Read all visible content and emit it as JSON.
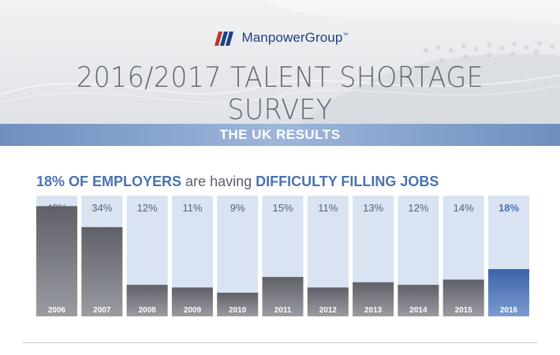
{
  "header": {
    "brand_name": "ManpowerGroup",
    "brand_tm": "™",
    "title": "2016/2017 TALENT SHORTAGE SURVEY",
    "band_label": "THE UK RESULTS"
  },
  "headline": {
    "part1": "18% OF EMPLOYERS",
    "part2": " are having ",
    "part3": "DIFFICULTY FILLING JOBS"
  },
  "colors": {
    "accent": "#4a72b3",
    "bar_gray_top": "#5f6068",
    "bar_gray_bottom": "#9a9ca3",
    "bar_highlight_top": "#3a63a8",
    "bar_highlight_bottom": "#7c9cd0",
    "bar_background": "#d9e3f2"
  },
  "chart_data": {
    "type": "bar",
    "categories": [
      "2006",
      "2007",
      "2008",
      "2009",
      "2010",
      "2011",
      "2012",
      "2013",
      "2014",
      "2015",
      "2016"
    ],
    "values": [
      42,
      34,
      12,
      11,
      9,
      15,
      11,
      13,
      12,
      14,
      18
    ],
    "value_labels": [
      "42%",
      "34%",
      "12%",
      "11%",
      "9%",
      "15%",
      "11%",
      "13%",
      "12%",
      "14%",
      "18%"
    ],
    "highlight_category": "2016",
    "ylim": [
      0,
      46
    ],
    "grid": false,
    "title": "",
    "xlabel": "",
    "ylabel": ""
  }
}
